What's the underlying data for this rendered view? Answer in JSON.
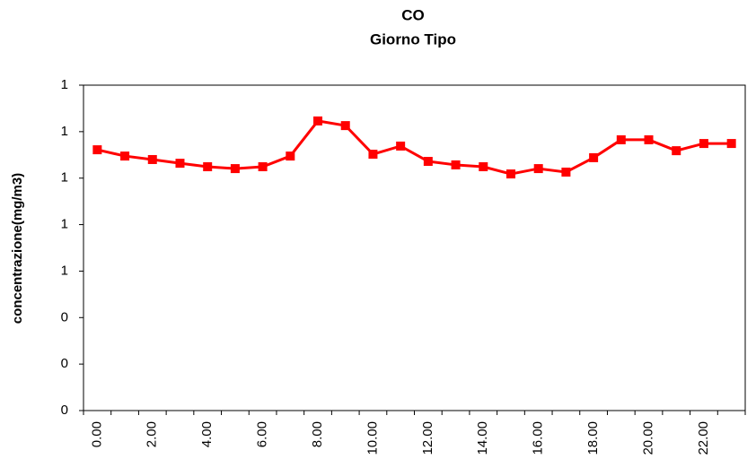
{
  "chart_data": {
    "type": "line",
    "title": "CO",
    "subtitle": "Giorno Tipo",
    "y_label": "concentrazione(mg/m3)",
    "categories": [
      "0.00",
      null,
      "2.00",
      null,
      "4.00",
      null,
      "6.00",
      null,
      "8.00",
      null,
      "10.00",
      null,
      "12.00",
      null,
      "14.00",
      null,
      "16.00",
      null,
      "18.00",
      null,
      "20.00",
      null,
      "22.00",
      null
    ],
    "series": [
      {
        "name": "CO",
        "color": "#ff0000",
        "values": [
          1.122,
          1.095,
          1.08,
          1.064,
          1.049,
          1.041,
          1.049,
          1.095,
          1.246,
          1.226,
          1.103,
          1.138,
          1.072,
          1.057,
          1.049,
          1.018,
          1.041,
          1.026,
          1.088,
          1.165,
          1.165,
          1.118,
          1.149,
          1.149
        ]
      }
    ],
    "ylim": [
      0,
      1.4
    ],
    "yticks": [
      0,
      {
        "value": 0.2,
        "label": "0"
      },
      {
        "value": 0.4,
        "label": "0"
      },
      {
        "value": 0.6,
        "label": "1"
      },
      {
        "value": 0.8,
        "label": "1"
      },
      1,
      {
        "value": 1.2,
        "label": "1"
      },
      {
        "value": 1.4,
        "label": "1"
      }
    ]
  }
}
